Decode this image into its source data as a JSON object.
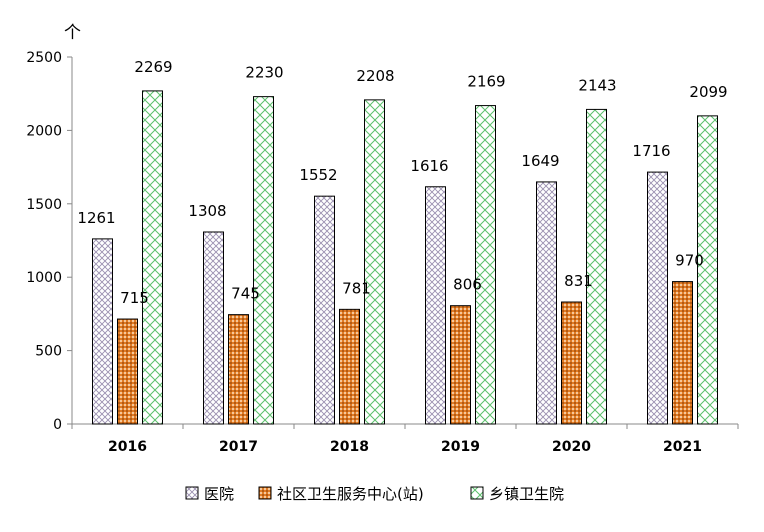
{
  "chart_data": {
    "type": "bar",
    "unit_label": "个",
    "categories": [
      "2016",
      "2017",
      "2018",
      "2019",
      "2020",
      "2021"
    ],
    "series": [
      {
        "name": "医院",
        "values": [
          1261,
          1308,
          1552,
          1616,
          1649,
          1716
        ]
      },
      {
        "name": "社区卫生服务中心(站)",
        "values": [
          715,
          745,
          781,
          806,
          831,
          970
        ]
      },
      {
        "name": "乡镇卫生院",
        "values": [
          2269,
          2230,
          2208,
          2169,
          2143,
          2099
        ]
      }
    ],
    "ylim": [
      0,
      2500
    ],
    "yticks": [
      0,
      500,
      1000,
      1500,
      2000,
      2500
    ],
    "grid": false,
    "legend_position": "bottom",
    "data_labels": true
  }
}
